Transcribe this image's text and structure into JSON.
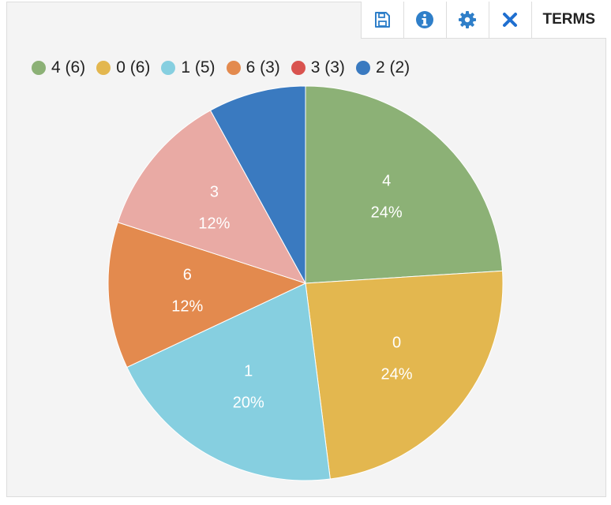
{
  "toolbar": {
    "save_icon": "save-icon",
    "info_icon": "info-icon",
    "settings_icon": "gear-icon",
    "close_icon": "close-icon",
    "terms_label": "TERMS",
    "icon_color": "#2f7fc9",
    "close_color": "#1f6fd0"
  },
  "chart_data": {
    "type": "pie",
    "legend_position": "top-left",
    "slices": [
      {
        "label": "4",
        "legend": "4 (6)",
        "value": 6,
        "percent": "24%",
        "color": "#8cb176"
      },
      {
        "label": "0",
        "legend": "0 (6)",
        "value": 6,
        "percent": "24%",
        "color": "#e3b74f"
      },
      {
        "label": "1",
        "legend": "1 (5)",
        "value": 5,
        "percent": "20%",
        "color": "#86cfe0"
      },
      {
        "label": "6",
        "legend": "6 (3)",
        "value": 3,
        "percent": "12%",
        "color": "#e38a4e"
      },
      {
        "label": "3",
        "legend": "3 (3)",
        "value": 3,
        "percent": "12%",
        "color": "#e9aaa4",
        "legend_color": "#d9534f"
      },
      {
        "label": "2",
        "legend": "2 (2)",
        "value": 2,
        "percent": "",
        "color": "#3a7ac0"
      }
    ]
  }
}
